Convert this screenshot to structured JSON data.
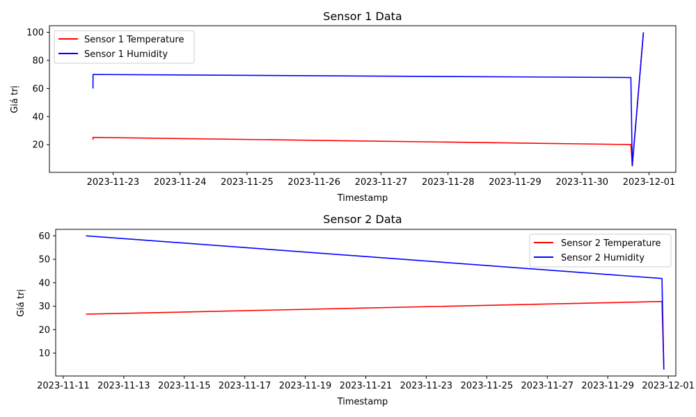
{
  "chart_data": [
    {
      "type": "line",
      "title": "Sensor 1 Data",
      "xlabel": "Timestamp",
      "ylabel": "Giá trị",
      "x_is_date": true,
      "xlim": [
        "2023-11-22T01:12:00",
        "2023-12-01T09:36:00"
      ],
      "ylim": [
        0.3,
        104.7
      ],
      "x_ticks": [
        "2023-11-23",
        "2023-11-24",
        "2023-11-25",
        "2023-11-26",
        "2023-11-27",
        "2023-11-28",
        "2023-11-29",
        "2023-11-30",
        "2023-12-01"
      ],
      "y_ticks": [
        20,
        40,
        60,
        80,
        100
      ],
      "legend_position": "upper-left",
      "grid": false,
      "series": [
        {
          "name": "Sensor 1 Temperature",
          "color": "#ff0000",
          "points": [
            [
              "2023-11-22T16:48:00",
              23.5
            ],
            [
              "2023-11-22T16:50:00",
              25.2
            ],
            [
              "2023-11-30T17:30:00",
              20.1
            ],
            [
              "2023-11-30T18:00:00",
              5.0
            ],
            [
              "2023-11-30T22:00:00",
              100.0
            ]
          ]
        },
        {
          "name": "Sensor 1 Humidity",
          "color": "#0000ff",
          "points": [
            [
              "2023-11-22T16:48:00",
              60.0
            ],
            [
              "2023-11-22T16:50:00",
              70.0
            ],
            [
              "2023-11-30T17:30:00",
              67.8
            ],
            [
              "2023-11-30T18:00:00",
              5.0
            ],
            [
              "2023-11-30T22:00:00",
              100.0
            ]
          ]
        }
      ]
    },
    {
      "type": "line",
      "title": "Sensor 2 Data",
      "xlabel": "Timestamp",
      "ylabel": "Giá trị",
      "x_is_date": true,
      "xlim": [
        "2023-11-10T18:00:00",
        "2023-12-01T06:00:00"
      ],
      "ylim": [
        0.25,
        62.75
      ],
      "x_ticks": [
        "2023-11-11",
        "2023-11-13",
        "2023-11-15",
        "2023-11-17",
        "2023-11-19",
        "2023-11-21",
        "2023-11-23",
        "2023-11-25",
        "2023-11-27",
        "2023-11-29",
        "2023-12-01"
      ],
      "y_ticks": [
        10,
        20,
        30,
        40,
        50,
        60
      ],
      "legend_position": "upper-right",
      "grid": false,
      "series": [
        {
          "name": "Sensor 2 Temperature",
          "color": "#ff0000",
          "points": [
            [
              "2023-11-11T18:00:00",
              26.6
            ],
            [
              "2023-11-30T19:00:00",
              32.0
            ],
            [
              "2023-11-30T20:30:00",
              3.0
            ]
          ]
        },
        {
          "name": "Sensor 2 Humidity",
          "color": "#0000ff",
          "points": [
            [
              "2023-11-11T18:00:00",
              60.0
            ],
            [
              "2023-11-30T19:00:00",
              41.8
            ],
            [
              "2023-11-30T20:30:00",
              3.0
            ]
          ]
        }
      ]
    }
  ]
}
